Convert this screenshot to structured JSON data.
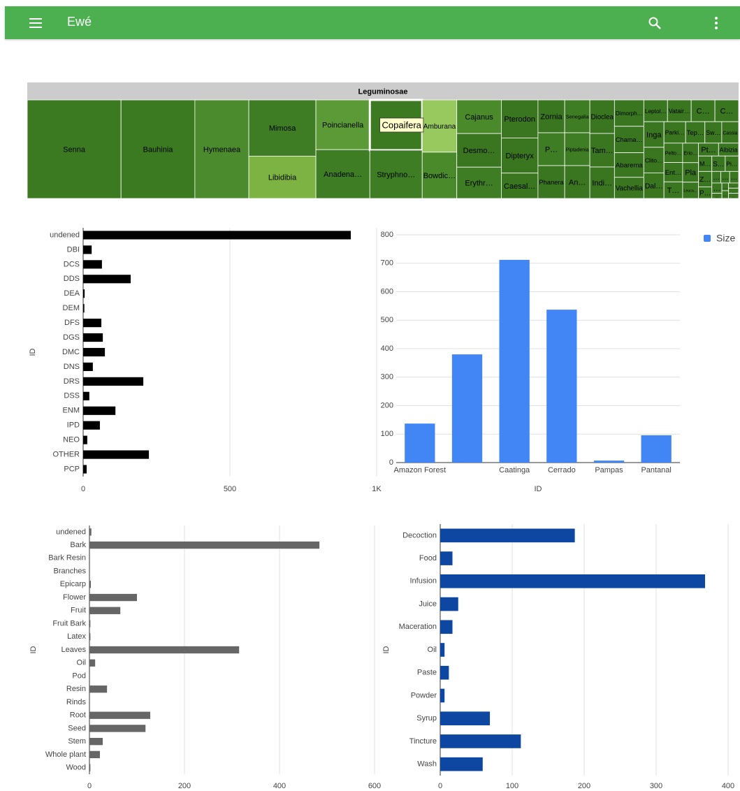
{
  "app_bar": {
    "title": "Ewé"
  },
  "treemap": {
    "title": "Leguminosae",
    "tooltip": "Copaifera",
    "labels": [
      "Senna",
      "Bauhinia",
      "Hymenaea",
      "Mimosa",
      "Libidibia",
      "Poincianella",
      "Anadena…",
      "Copaifera",
      "Stryphno…",
      "Amburana",
      "Bowdic…",
      "Cajanus",
      "Desmo…",
      "Erythr…",
      "Pterodon",
      "Dipteryx",
      "Caesal…",
      "Zornia",
      "P…",
      "Phanera",
      "Senegalia",
      "Piptadenia",
      "An…",
      "Dioclea",
      "Tam…",
      "Indi…",
      "Dimorph…",
      "Chama…",
      "Abarema",
      "Vachellia",
      "Leptol…",
      "Vatair…",
      "C…",
      "C…",
      "Inga",
      "Clito…",
      "Dal…",
      "Parki…",
      "Tep…",
      "Sw…",
      "Cassia",
      "Pelto…",
      "Ent…",
      "T…",
      "Erio…",
      "Pla",
      "Leuca…",
      "Pt…",
      "Albizia",
      "M…",
      "S…",
      "Pi…",
      "Z…",
      "P…",
      "…",
      "…",
      "…",
      "…",
      "…",
      "…",
      "…",
      "…",
      "…",
      "…"
    ],
    "values": [
      179,
      141,
      103,
      73,
      55,
      52,
      51,
      51,
      49,
      35,
      31,
      29,
      29,
      27,
      27,
      25,
      18,
      17,
      17,
      17,
      16,
      16,
      16,
      16,
      16,
      15,
      15,
      15,
      14,
      12,
      10,
      10,
      10,
      10,
      10,
      10,
      10,
      9,
      8,
      7,
      7,
      7,
      7,
      6,
      6,
      6,
      5,
      5,
      5,
      4,
      4,
      4,
      4,
      3,
      2,
      2,
      2,
      2,
      1,
      1,
      1,
      1,
      1,
      1
    ],
    "colors": [
      "#3c7a22",
      "#3c7a22",
      "#4b8a2d",
      "#3f7d24",
      "#7cb342",
      "#5c9a38",
      "#3f7d24",
      "#3c7a22",
      "#3f7d24",
      "#98c95e",
      "#4a8a2a",
      "#4a8a2a",
      "#3a7520",
      "#3f7d24",
      "#3a7520",
      "#3a7520",
      "#3a7520",
      "#3a7520",
      "#3f7d24",
      "#3a7520",
      "#3f7d24",
      "#3f7d24",
      "#3a7520",
      "#3a7520",
      "#3a7520",
      "#3a7520",
      "#3a7520",
      "#3a7520",
      "#3a7520",
      "#3a7520",
      "#3a7520",
      "#3a7520",
      "#3a7520",
      "#3a7520",
      "#3a7520",
      "#3a7520",
      "#3a7520",
      "#3a7520",
      "#3a7520",
      "#3a7520",
      "#3a7520",
      "#3a7520",
      "#3a7520",
      "#3a7520",
      "#3a7520",
      "#3a7520",
      "#3a7520",
      "#3a7520",
      "#3a7520",
      "#3a7520",
      "#3a7520",
      "#3a7520",
      "#3a7520",
      "#3a7520",
      "#3a7520",
      "#3a7520",
      "#3a7520",
      "#3a7520",
      "#3a7520",
      "#3a7520",
      "#3a7520",
      "#3a7520",
      "#3a7520",
      "#3a7520"
    ]
  },
  "chart_data": [
    {
      "type": "bar",
      "horizontal": true,
      "y_label": "ID",
      "color": "#000000",
      "grid": true,
      "categories": [
        "undened",
        "DBI",
        "DCS",
        "DDS",
        "DEA",
        "DEM",
        "DFS",
        "DGS",
        "DMC",
        "DNS",
        "DRS",
        "DSS",
        "ENM",
        "IPD",
        "NEO",
        "OTHER",
        "PCP"
      ],
      "values": [
        912,
        29,
        64,
        162,
        5,
        4,
        62,
        67,
        74,
        33,
        205,
        21,
        110,
        57,
        14,
        224,
        12
      ],
      "xlim": [
        0,
        1000
      ],
      "xticks": [
        0,
        500,
        {
          "value": 1000,
          "label": "1K"
        }
      ]
    },
    {
      "type": "bar",
      "horizontal": false,
      "x_label": "ID",
      "grid": true,
      "legend": "right",
      "categories": [
        "Amazon Forest",
        null,
        "Caatinga",
        "Cerrado",
        "Pampas",
        "Pantanal"
      ],
      "series": [
        {
          "name": "Size",
          "color": "#4285f4",
          "values": [
            137,
            380,
            712,
            537,
            7,
            96
          ]
        }
      ],
      "ylim": [
        0,
        800
      ],
      "yticks": [
        0,
        100,
        200,
        300,
        400,
        500,
        600,
        700,
        800
      ]
    },
    {
      "type": "bar",
      "horizontal": true,
      "y_label": "ID",
      "color": "#666666",
      "grid": true,
      "categories": [
        "undened",
        "Bark",
        "Bark Resin",
        "Branches",
        "Epicarp",
        "Flower",
        "Fruit",
        "Fruit Bark",
        "Latex",
        "Leaves",
        "Oil",
        "Pod",
        "Resin",
        "Rinds",
        "Root",
        "Seed",
        "Stem",
        "Whole plant",
        "Wood"
      ],
      "values": [
        4,
        484,
        1,
        1,
        3,
        100,
        65,
        2,
        2,
        315,
        12,
        1,
        37,
        1,
        128,
        118,
        28,
        22,
        2
      ],
      "xlim": [
        0,
        600
      ],
      "xticks": [
        0,
        200,
        400,
        600
      ]
    },
    {
      "type": "bar",
      "horizontal": true,
      "y_label": "ID",
      "color": "#0d47a1",
      "grid": true,
      "categories": [
        "Decoction",
        "Food",
        "Infusion",
        "Juice",
        "Maceration",
        "Oil",
        "Paste",
        "Powder",
        "Syrup",
        "Tincture",
        "Wash"
      ],
      "values": [
        187,
        17,
        368,
        25,
        17,
        6,
        12,
        6,
        69,
        112,
        59
      ],
      "xlim": [
        0,
        400
      ],
      "xticks": [
        0,
        100,
        200,
        300,
        400
      ]
    }
  ]
}
